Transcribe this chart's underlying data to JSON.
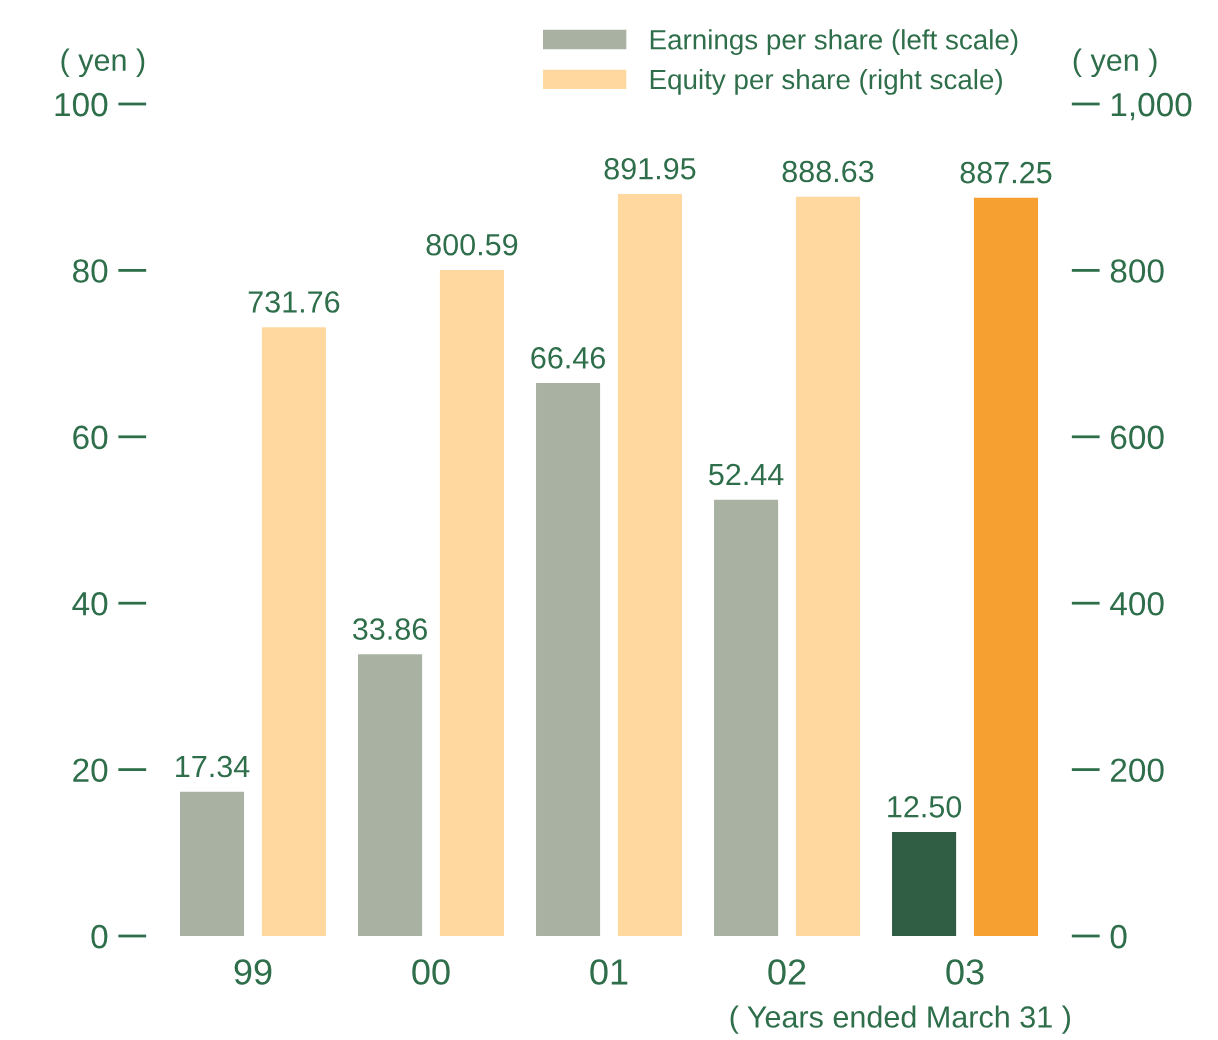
{
  "chart_data": {
    "type": "bar",
    "categories": [
      "99",
      "00",
      "01",
      "02",
      "03"
    ],
    "series": [
      {
        "name": "Earnings per share (left scale)",
        "color": "#a9b2a2",
        "colors": [
          "#a9b2a2",
          "#a9b2a2",
          "#a9b2a2",
          "#a9b2a2",
          "#2f5e45"
        ],
        "values": [
          17.34,
          33.86,
          66.46,
          52.44,
          12.5
        ],
        "value_labels": [
          "17.34",
          "33.86",
          "66.46",
          "52.44",
          "12.50"
        ]
      },
      {
        "name": "Equity per share (right scale)",
        "color": "#ffd8a0",
        "colors": [
          "#ffd8a0",
          "#ffd8a0",
          "#ffd8a0",
          "#ffd8a0",
          "#f5a030"
        ],
        "values": [
          731.76,
          800.59,
          891.95,
          888.63,
          887.25
        ],
        "value_labels": [
          "731.76",
          "800.59",
          "891.95",
          "888.63",
          "887.25"
        ],
        "axis": "y2"
      }
    ],
    "ylabel": "( yen )",
    "y2label": "( yen )",
    "xlabel": "( Years ended March 31 )",
    "ylim": [
      0,
      100
    ],
    "yticks": [
      0,
      20,
      40,
      60,
      80,
      100
    ],
    "y2lim": [
      0,
      1000
    ],
    "y2ticks": [
      0,
      200,
      400,
      600,
      800,
      {
        "value": 1000,
        "label": "1,000"
      }
    ],
    "legend": "top right",
    "grid": false
  }
}
